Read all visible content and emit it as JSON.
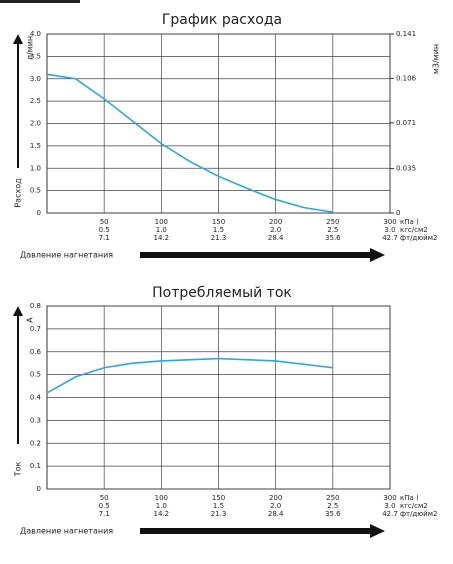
{
  "chart_data": [
    {
      "type": "line",
      "title": "График расхода",
      "y_label": "Расход",
      "y_unit": "л/мин",
      "y2_unit": "м3/мин",
      "x_label": "Давление нагнетания",
      "x": [
        0,
        25,
        50,
        75,
        100,
        125,
        150,
        175,
        200,
        225,
        250
      ],
      "series": [
        {
          "color": "#2aa7df",
          "values": [
            3.1,
            3.0,
            2.55,
            2.05,
            1.55,
            1.15,
            0.82,
            0.55,
            0.3,
            0.12,
            0.02
          ]
        }
      ],
      "xlim": [
        0,
        300
      ],
      "xticks": [
        50,
        100,
        150,
        200,
        250,
        300
      ],
      "xticks_kgf": [
        "0.5",
        "1.0",
        "1.5",
        "2.0",
        "2.5",
        "3.0"
      ],
      "xticks_ft": [
        "7.1",
        "14.2",
        "21.3",
        "28.4",
        "35.6",
        "42.7"
      ],
      "x_units": [
        "кПа )",
        "кгс/см2",
        "фт/дюйм2"
      ],
      "ylim": [
        0,
        4
      ],
      "yticks": [
        0,
        0.5,
        {
          "value": 1,
          "label": "1.0"
        },
        1.5,
        {
          "value": 2,
          "label": "2.0"
        },
        2.5,
        {
          "value": 3,
          "label": "3.0"
        },
        3.5,
        {
          "value": 4,
          "label": "4.0"
        }
      ],
      "y2lim": [
        0,
        0.141
      ],
      "y2ticks": [
        0,
        0.035,
        0.071,
        0.106,
        0.141
      ],
      "grid": true
    },
    {
      "type": "line",
      "title": "Потребляемый ток",
      "y_label": "Ток",
      "y_unit": "A",
      "x_label": "Давление нагнетания",
      "x": [
        0,
        25,
        50,
        75,
        100,
        150,
        200,
        250
      ],
      "series": [
        {
          "color": "#2aa7df",
          "values": [
            0.42,
            0.49,
            0.53,
            0.55,
            0.56,
            0.57,
            0.56,
            0.53
          ]
        }
      ],
      "xlim": [
        0,
        300
      ],
      "xticks": [
        50,
        100,
        150,
        200,
        250,
        300
      ],
      "xticks_kgf": [
        "0.5",
        "1.0",
        "1.5",
        "2.0",
        "2.5",
        "3.0"
      ],
      "xticks_ft": [
        "7.1",
        "14.2",
        "21.3",
        "28.4",
        "35.6",
        "42.7"
      ],
      "x_units": [
        "кПа )",
        "кгс/см2",
        "фт/дюйм2"
      ],
      "ylim": [
        0,
        0.8
      ],
      "yticks": [
        0,
        0.1,
        0.2,
        0.3,
        0.4,
        0.5,
        0.6,
        0.7,
        0.8
      ],
      "grid": true
    }
  ]
}
